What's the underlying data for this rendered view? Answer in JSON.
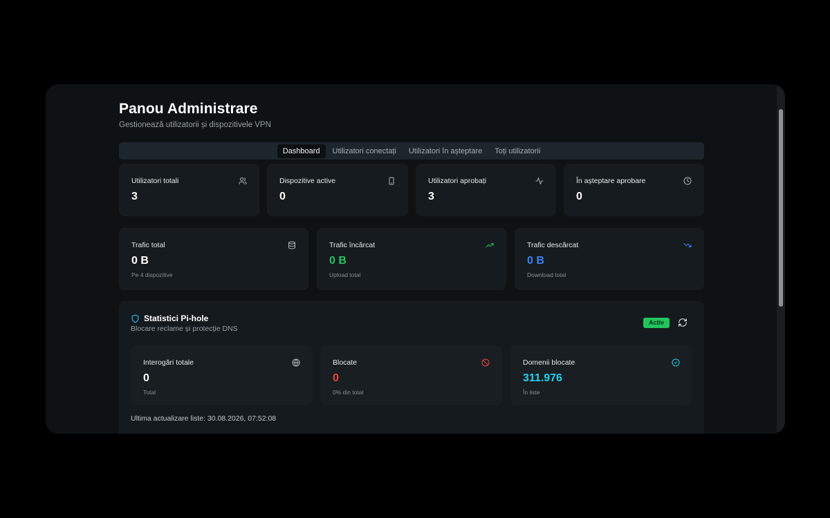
{
  "header": {
    "title": "Panou Administrare",
    "subtitle": "Gestionează utilizatorii și dispozitivele VPN"
  },
  "tabs": [
    {
      "label": "Dashboard",
      "active": true
    },
    {
      "label": "Utilizatori conectați",
      "active": false
    },
    {
      "label": "Utilizatori în așteptare",
      "active": false
    },
    {
      "label": "Toți utilizatorii",
      "active": false
    }
  ],
  "stats": [
    {
      "label": "Utilizatori totali",
      "value": "3",
      "icon": "users-icon"
    },
    {
      "label": "Dispozitive active",
      "value": "0",
      "icon": "smartphone-icon"
    },
    {
      "label": "Utilizatori aprobați",
      "value": "3",
      "icon": "activity-icon"
    },
    {
      "label": "În așteptare aprobare",
      "value": "0",
      "icon": "clock-icon"
    }
  ],
  "traffic": [
    {
      "label": "Trafic total",
      "value": "0 B",
      "sub": "Pe 4 dispozitive",
      "icon": "database-icon",
      "color": "#ffffff"
    },
    {
      "label": "Trafic încărcat",
      "value": "0 B",
      "sub": "Upload total",
      "icon": "trending-up-icon",
      "color": "#22c55e"
    },
    {
      "label": "Trafic descărcat",
      "value": "0 B",
      "sub": "Download total",
      "icon": "trending-down-icon",
      "color": "#3b82f6"
    }
  ],
  "pihole": {
    "title": "Statistici Pi-hole",
    "subtitle": "Blocare reclame și protecție DNS",
    "status_badge": "Activ",
    "cards": [
      {
        "label": "Interogări totale",
        "value": "0",
        "sub": "Total",
        "icon": "globe-icon",
        "color": "#ffffff"
      },
      {
        "label": "Blocate",
        "value": "0",
        "sub": "0% din total",
        "icon": "ban-icon",
        "color": "#ef4444"
      },
      {
        "label": "Domenii blocate",
        "value": "311.976",
        "sub": "În liste",
        "icon": "check-circle-icon",
        "color": "#22d3ee"
      }
    ],
    "last_update": "Ultima actualizare liste: 30.08.2026, 07:52:08"
  },
  "colors": {
    "background": "#000000",
    "window": "#0e1214",
    "card": "#151b1e",
    "tabs_bar": "#1c262c",
    "success": "#22c55e",
    "upload": "#22c55e",
    "download": "#3b82f6",
    "blocked": "#ef4444",
    "domains": "#22d3ee",
    "pihole_icon": "#38bdf8"
  }
}
